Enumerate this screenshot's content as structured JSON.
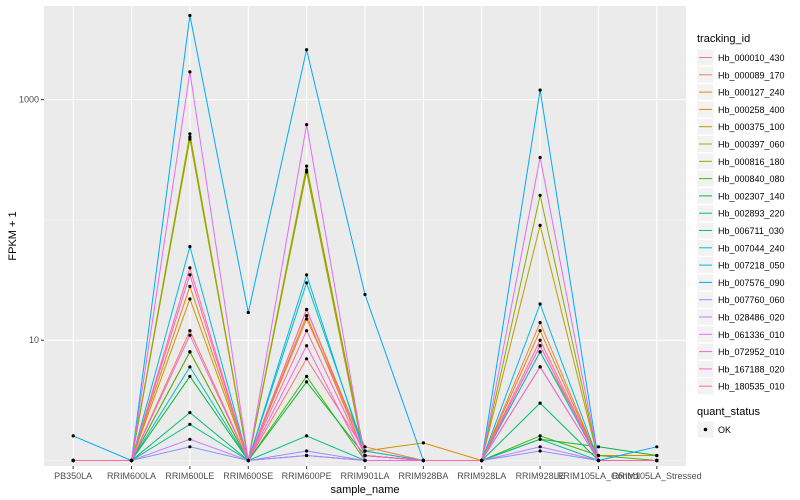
{
  "chart_data": {
    "type": "line",
    "title": "",
    "xlabel": "sample_name",
    "ylabel": "FPKM + 1",
    "y_scale": "log10",
    "ylim": [
      0.9,
      6000
    ],
    "y_ticks": [
      10,
      1000
    ],
    "y_tick_labels": [
      "10",
      "1000"
    ],
    "grid": true,
    "legend_position": "right",
    "categories": [
      "PB350LA",
      "RRIM600LA",
      "RRIM600LE",
      "RRIM600SE",
      "RRIM600PE",
      "RRIM901LA",
      "RRIM928BA",
      "RRIM928LA",
      "RRIM928LE",
      "RRIM105LA_Control",
      "RRIM105LA_Stressed"
    ],
    "legend_title": "tracking_id",
    "series": [
      {
        "name": "Hb_000010_430",
        "color": "#F8766D",
        "values": [
          1,
          1,
          8,
          1,
          7,
          1.2,
          1,
          1,
          9,
          1,
          1
        ]
      },
      {
        "name": "Hb_000089_170",
        "color": "#F07F51",
        "values": [
          1,
          1,
          12,
          1,
          15,
          1.3,
          1,
          1,
          14,
          1,
          1
        ]
      },
      {
        "name": "Hb_000127_240",
        "color": "#E38900",
        "values": [
          1,
          1,
          28,
          1,
          16,
          1.1,
          1,
          1,
          12,
          1,
          1
        ]
      },
      {
        "name": "Hb_000258_400",
        "color": "#D39200",
        "values": [
          1,
          1,
          22,
          1,
          18,
          1.2,
          1.4,
          1,
          8,
          1.1,
          1.1
        ]
      },
      {
        "name": "Hb_000375_100",
        "color": "#C09B00",
        "values": [
          1,
          1,
          520,
          1,
          260,
          1.1,
          1,
          1,
          90,
          1,
          1
        ]
      },
      {
        "name": "Hb_000397_060",
        "color": "#A8A200",
        "values": [
          1,
          1,
          490,
          1,
          250,
          1,
          1,
          1,
          6,
          1,
          1
        ]
      },
      {
        "name": "Hb_000816_180",
        "color": "#8CAB00",
        "values": [
          1,
          1,
          470,
          1,
          280,
          1.1,
          1,
          1,
          160,
          1,
          1
        ]
      },
      {
        "name": "Hb_000840_080",
        "color": "#4BB500",
        "values": [
          1,
          1,
          8,
          1,
          5,
          1,
          1,
          1,
          1.6,
          1.1,
          1
        ]
      },
      {
        "name": "Hb_002307_140",
        "color": "#00BA38",
        "values": [
          1,
          1,
          5,
          1,
          4.5,
          1.1,
          1,
          1,
          1.5,
          1.3,
          1.1
        ]
      },
      {
        "name": "Hb_002893_220",
        "color": "#00BE6C",
        "values": [
          1,
          1,
          2.5,
          1,
          1.1,
          1,
          1,
          1,
          3,
          1,
          1
        ]
      },
      {
        "name": "Hb_006711_030",
        "color": "#00C08B",
        "values": [
          1,
          1,
          2,
          1,
          1.6,
          1,
          1,
          1,
          1.5,
          1,
          1
        ]
      },
      {
        "name": "Hb_007044_240",
        "color": "#00BFC4",
        "values": [
          1,
          1,
          6,
          1,
          30,
          1.2,
          1,
          1,
          8,
          1,
          1
        ]
      },
      {
        "name": "Hb_007218_050",
        "color": "#00B8E7",
        "values": [
          1,
          1,
          60,
          1,
          35,
          1.1,
          1,
          1,
          20,
          1,
          1
        ]
      },
      {
        "name": "Hb_007576_090",
        "color": "#00A9FF",
        "values": [
          1.6,
          1,
          5000,
          17,
          2600,
          24,
          1,
          1,
          1200,
          1,
          1.3
        ]
      },
      {
        "name": "Hb_007760_060",
        "color": "#8494FF",
        "values": [
          1,
          1,
          1.3,
          1,
          1.2,
          1,
          1,
          1,
          1.2,
          1,
          1
        ]
      },
      {
        "name": "Hb_028486_020",
        "color": "#C77CFF",
        "values": [
          1,
          1,
          1.5,
          1,
          1.1,
          1,
          1,
          1,
          1.3,
          1,
          1
        ]
      },
      {
        "name": "Hb_061336_010",
        "color": "#E76BF3",
        "values": [
          1,
          1,
          1700,
          1,
          620,
          1,
          1,
          1,
          330,
          1,
          1
        ]
      },
      {
        "name": "Hb_072952_010",
        "color": "#F564E3",
        "values": [
          1,
          1,
          11,
          1,
          9,
          1,
          1,
          1,
          6,
          1,
          1
        ]
      },
      {
        "name": "Hb_167188_020",
        "color": "#FD61D1",
        "values": [
          1,
          1,
          35,
          1,
          18,
          1.1,
          1,
          1,
          9,
          1,
          1
        ]
      },
      {
        "name": "Hb_180535_010",
        "color": "#FF67A4",
        "values": [
          1,
          1,
          40,
          1,
          12,
          1.1,
          1,
          1,
          10,
          1,
          1
        ]
      }
    ],
    "legend2_title": "quant_status",
    "legend2_items": [
      "OK"
    ]
  }
}
